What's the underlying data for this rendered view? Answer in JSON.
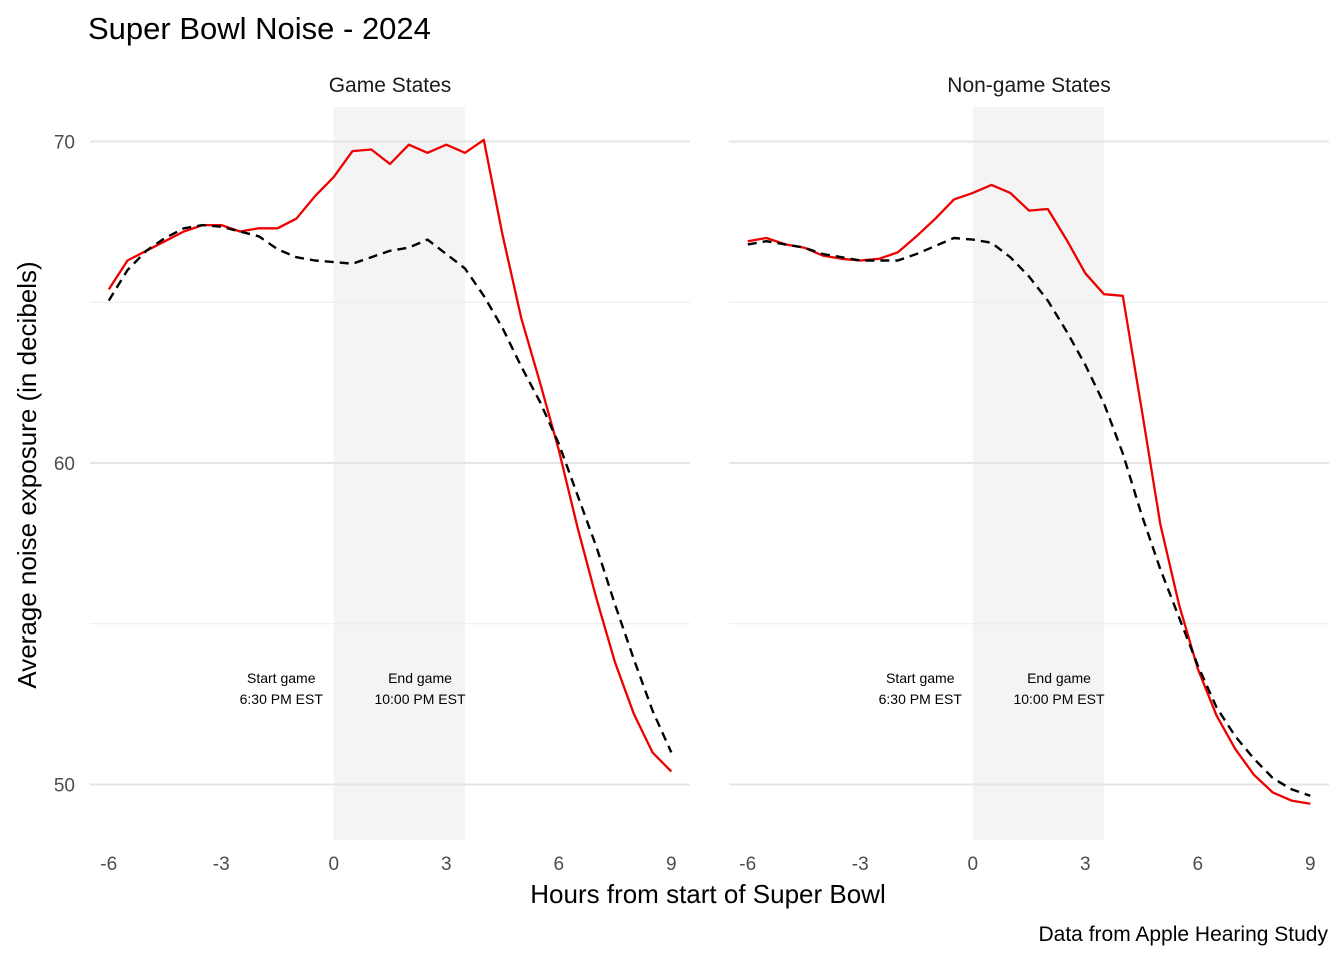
{
  "chart_data": {
    "type": "line",
    "title": "Super Bowl Noise - 2024",
    "xlabel": "Hours from start of Super Bowl",
    "ylabel": "Average noise exposure (in decibels)",
    "caption": "Data from Apple Hearing Study",
    "xlim": [
      -6.5,
      9.5
    ],
    "ylim": [
      48.2,
      71.1
    ],
    "x_ticks": [
      -6,
      -3,
      0,
      3,
      6,
      9
    ],
    "x_tick_labels": [
      "-6",
      "-3",
      "0",
      "3",
      "6",
      "9"
    ],
    "y_major_ticks": [
      50,
      60,
      70
    ],
    "y_tick_labels": [
      "50",
      "60",
      "70"
    ],
    "y_minor_ticks": [
      55,
      65
    ],
    "grid": true,
    "legend": "none",
    "colors": {
      "red_series": "#ee0000",
      "dashed_series": "#000000",
      "game_band": "#f4f4f4",
      "grid": "#e5e5e5"
    },
    "x": [
      -6,
      -5.5,
      -5,
      -4.5,
      -4,
      -3.5,
      -3,
      -2.5,
      -2,
      -1.5,
      -1,
      -0.5,
      0,
      0.5,
      1,
      1.5,
      2,
      2.5,
      3,
      3.5,
      4,
      4.5,
      5,
      5.5,
      6,
      6.5,
      7,
      7.5,
      8,
      8.5,
      9
    ],
    "game_band": {
      "start": 0,
      "end": 3.5
    },
    "annotations": [
      {
        "x": -1.4,
        "lines": [
          "Start game",
          "6:30 PM EST"
        ]
      },
      {
        "x": 2.3,
        "lines": [
          "End game",
          "10:00 PM EST"
        ]
      }
    ],
    "panels": [
      {
        "label": "Game States",
        "series": [
          {
            "style": "solid",
            "color": "#ee0000",
            "values": [
              65.4,
              66.3,
              66.6,
              66.9,
              67.2,
              67.4,
              67.4,
              67.2,
              67.3,
              67.3,
              67.6,
              68.3,
              68.9,
              69.7,
              69.75,
              69.3,
              69.9,
              69.65,
              69.9,
              69.65,
              70.05,
              67.1,
              64.5,
              62.5,
              60.4,
              58.0,
              55.8,
              53.8,
              52.2,
              51.0,
              50.4
            ]
          },
          {
            "style": "dashed",
            "color": "#000000",
            "values": [
              65.05,
              66.0,
              66.6,
              67.0,
              67.3,
              67.4,
              67.35,
              67.2,
              67.05,
              66.65,
              66.4,
              66.3,
              66.25,
              66.2,
              66.4,
              66.6,
              66.7,
              66.95,
              66.5,
              66.05,
              65.2,
              64.2,
              63.0,
              61.9,
              60.6,
              59.0,
              57.4,
              55.6,
              53.9,
              52.3,
              51.0
            ]
          }
        ]
      },
      {
        "label": "Non-game States",
        "series": [
          {
            "style": "solid",
            "color": "#ee0000",
            "values": [
              66.9,
              67.0,
              66.8,
              66.7,
              66.45,
              66.35,
              66.3,
              66.35,
              66.55,
              67.05,
              67.6,
              68.2,
              68.4,
              68.65,
              68.4,
              67.85,
              67.9,
              66.95,
              65.9,
              65.25,
              65.2,
              61.7,
              58.1,
              55.6,
              53.6,
              52.15,
              51.1,
              50.3,
              49.75,
              49.5,
              49.4
            ]
          },
          {
            "style": "dashed",
            "color": "#000000",
            "values": [
              66.8,
              66.9,
              66.8,
              66.7,
              66.5,
              66.4,
              66.3,
              66.3,
              66.3,
              66.5,
              66.75,
              67.0,
              66.95,
              66.85,
              66.4,
              65.8,
              65.05,
              64.1,
              63.05,
              61.85,
              60.3,
              58.4,
              56.7,
              55.2,
              53.7,
              52.4,
              51.5,
              50.8,
              50.2,
              49.85,
              49.65
            ]
          }
        ]
      }
    ]
  }
}
